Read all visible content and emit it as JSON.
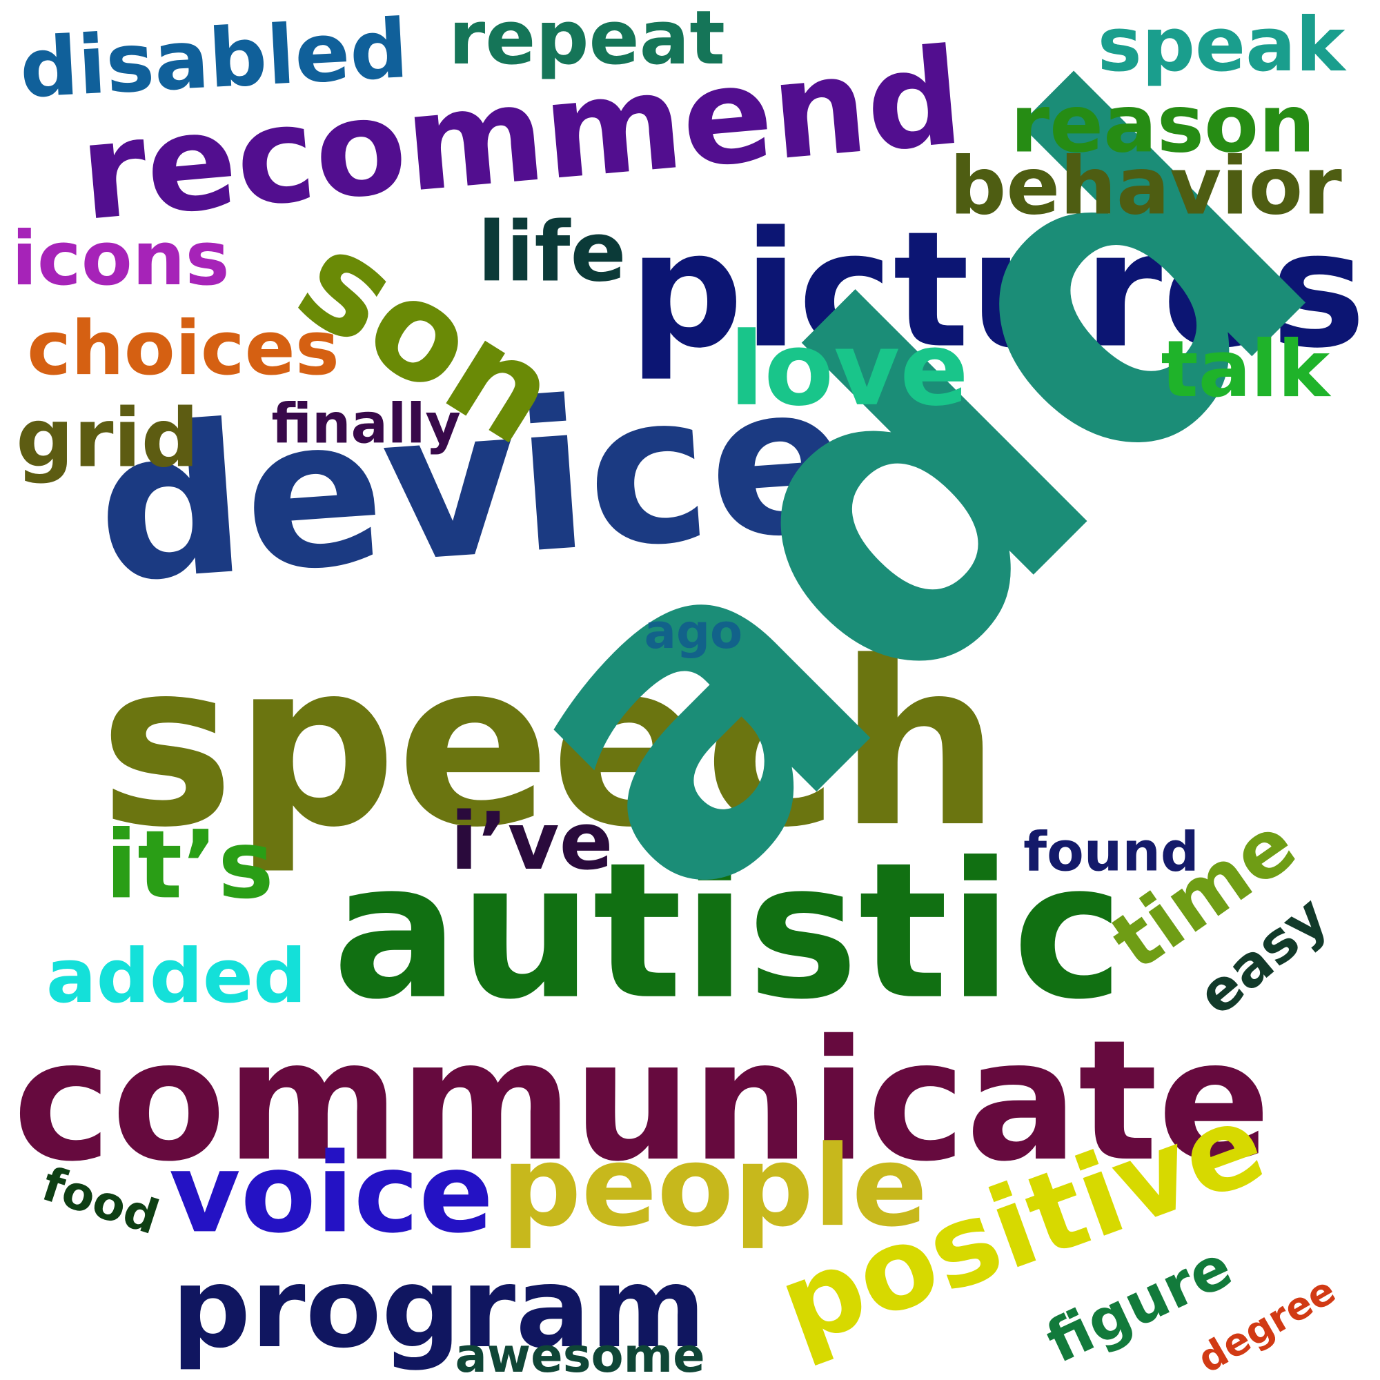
{
  "words": [
    {
      "text": "speech",
      "color": "#6b7510"
    },
    {
      "text": "device",
      "color": "#1b3a82"
    },
    {
      "text": "communicate",
      "color": "#660a3e"
    },
    {
      "text": "autistic",
      "color": "#117012"
    },
    {
      "text": "pictures",
      "color": "#0c1573"
    },
    {
      "text": "recommend",
      "color": "#520e8f"
    },
    {
      "text": "son",
      "color": "#6a8a06"
    },
    {
      "text": "add",
      "color": "#1b8d77"
    },
    {
      "text": "positive",
      "color": "#d7d900"
    },
    {
      "text": "people",
      "color": "#c7b81c"
    },
    {
      "text": "voice",
      "color": "#2412c4"
    },
    {
      "text": "program",
      "color": "#101660"
    },
    {
      "text": "time",
      "color": "#6f9d15"
    },
    {
      "text": "love",
      "color": "#19c58a"
    },
    {
      "text": "figure",
      "color": "#127a3b"
    },
    {
      "text": "behavior",
      "color": "#4e5d12"
    },
    {
      "text": "reason",
      "color": "#268c14"
    },
    {
      "text": "repeat",
      "color": "#157558"
    },
    {
      "text": "speak",
      "color": "#1a9e8d"
    },
    {
      "text": "disabled",
      "color": "#10609a"
    },
    {
      "text": "icons",
      "color": "#a623b8"
    },
    {
      "text": "choices",
      "color": "#d56012"
    },
    {
      "text": "grid",
      "color": "#5d5c12"
    },
    {
      "text": "life",
      "color": "#0b3a38"
    },
    {
      "text": "talk",
      "color": "#1fb32a"
    },
    {
      "text": "finally",
      "color": "#38094a"
    },
    {
      "text": "it’s",
      "color": "#2a9e16"
    },
    {
      "text": "i’ve",
      "color": "#2a0a3c"
    },
    {
      "text": "added",
      "color": "#14e0d9"
    },
    {
      "text": "found",
      "color": "#141a6a"
    },
    {
      "text": "easy",
      "color": "#123a2a"
    },
    {
      "text": "ago",
      "color": "#12628a"
    },
    {
      "text": "food",
      "color": "#0e3f14"
    },
    {
      "text": "awesome",
      "color": "#0f4636"
    },
    {
      "text": "degree",
      "color": "#d13a14"
    }
  ]
}
